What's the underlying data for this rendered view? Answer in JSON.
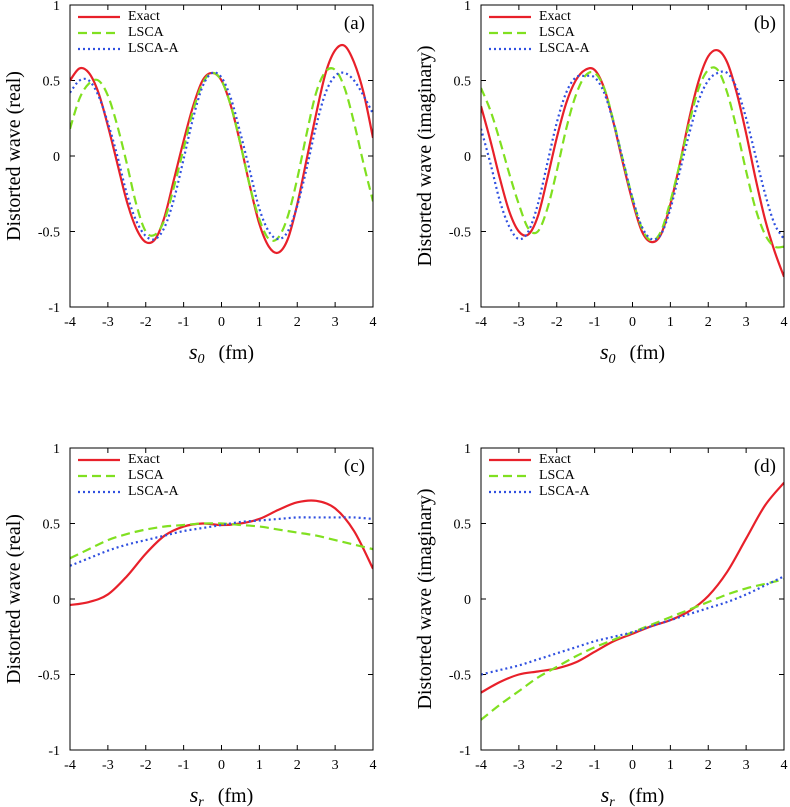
{
  "chart_data": [
    {
      "type": "line",
      "panel_label": "(a)",
      "ylabel": "Distorted wave (real)",
      "xlabel": {
        "symbol": "s",
        "subscript": "0",
        "unit": "(fm)"
      },
      "xlim": [
        -4,
        4
      ],
      "ylim": [
        -1,
        1
      ],
      "xticks": [
        -4,
        -3,
        -2,
        -1,
        0,
        1,
        2,
        3,
        4
      ],
      "yticks": [
        -1,
        -0.5,
        0,
        0.5,
        1
      ],
      "legend": "upper left",
      "x": [
        -4,
        -3.75,
        -3.5,
        -3.25,
        -3,
        -2.75,
        -2.5,
        -2.25,
        -2,
        -1.75,
        -1.5,
        -1.25,
        -1,
        -0.75,
        -0.5,
        -0.25,
        0,
        0.25,
        0.5,
        0.75,
        1,
        1.25,
        1.5,
        1.75,
        2,
        2.25,
        2.5,
        2.75,
        3,
        3.25,
        3.5,
        3.75,
        4
      ],
      "series": [
        {
          "name": "Exact",
          "color": "#e8202a",
          "linestyle": "solid",
          "values": [
            0.5,
            0.58,
            0.55,
            0.42,
            0.2,
            -0.05,
            -0.3,
            -0.48,
            -0.57,
            -0.55,
            -0.4,
            -0.15,
            0.1,
            0.33,
            0.5,
            0.55,
            0.5,
            0.33,
            0.08,
            -0.2,
            -0.45,
            -0.6,
            -0.64,
            -0.55,
            -0.32,
            -0.02,
            0.28,
            0.55,
            0.7,
            0.73,
            0.62,
            0.42,
            0.12
          ]
        },
        {
          "name": "LSCA",
          "color": "#80e020",
          "linestyle": "dashed",
          "values": [
            0.18,
            0.38,
            0.48,
            0.5,
            0.4,
            0.2,
            -0.05,
            -0.32,
            -0.5,
            -0.52,
            -0.42,
            -0.2,
            0.05,
            0.3,
            0.48,
            0.55,
            0.5,
            0.33,
            0.08,
            -0.2,
            -0.42,
            -0.55,
            -0.54,
            -0.4,
            -0.15,
            0.15,
            0.42,
            0.56,
            0.57,
            0.45,
            0.22,
            -0.05,
            -0.3
          ]
        },
        {
          "name": "LSCA-A",
          "color": "#3050e0",
          "linestyle": "dotted",
          "values": [
            0.42,
            0.5,
            0.5,
            0.4,
            0.22,
            0.0,
            -0.25,
            -0.43,
            -0.53,
            -0.55,
            -0.47,
            -0.28,
            -0.02,
            0.25,
            0.46,
            0.55,
            0.52,
            0.38,
            0.15,
            -0.1,
            -0.35,
            -0.5,
            -0.55,
            -0.5,
            -0.33,
            -0.08,
            0.2,
            0.42,
            0.53,
            0.55,
            0.5,
            0.4,
            0.28
          ]
        }
      ]
    },
    {
      "type": "line",
      "panel_label": "(b)",
      "ylabel": "Distorted wave (imaginary)",
      "xlabel": {
        "symbol": "s",
        "subscript": "0",
        "unit": "(fm)"
      },
      "xlim": [
        -4,
        4
      ],
      "ylim": [
        -1,
        1
      ],
      "xticks": [
        -4,
        -3,
        -2,
        -1,
        0,
        1,
        2,
        3,
        4
      ],
      "yticks": [
        -1,
        -0.5,
        0,
        0.5,
        1
      ],
      "legend": "upper left",
      "x": [
        -4,
        -3.75,
        -3.5,
        -3.25,
        -3,
        -2.75,
        -2.5,
        -2.25,
        -2,
        -1.75,
        -1.5,
        -1.25,
        -1,
        -0.75,
        -0.5,
        -0.25,
        0,
        0.25,
        0.5,
        0.75,
        1,
        1.25,
        1.5,
        1.75,
        2,
        2.25,
        2.5,
        2.75,
        3,
        3.25,
        3.5,
        3.75,
        4
      ],
      "series": [
        {
          "name": "Exact",
          "color": "#e8202a",
          "linestyle": "solid",
          "values": [
            0.33,
            0.1,
            -0.15,
            -0.37,
            -0.5,
            -0.52,
            -0.4,
            -0.15,
            0.12,
            0.35,
            0.5,
            0.57,
            0.57,
            0.45,
            0.22,
            -0.05,
            -0.3,
            -0.5,
            -0.57,
            -0.52,
            -0.32,
            -0.05,
            0.25,
            0.5,
            0.66,
            0.7,
            0.62,
            0.42,
            0.15,
            -0.15,
            -0.42,
            -0.63,
            -0.8
          ]
        },
        {
          "name": "LSCA",
          "color": "#80e020",
          "linestyle": "dashed",
          "values": [
            0.45,
            0.3,
            0.1,
            -0.12,
            -0.32,
            -0.48,
            -0.5,
            -0.35,
            -0.1,
            0.18,
            0.4,
            0.53,
            0.55,
            0.45,
            0.23,
            -0.03,
            -0.28,
            -0.48,
            -0.56,
            -0.5,
            -0.3,
            -0.05,
            0.22,
            0.45,
            0.57,
            0.57,
            0.42,
            0.18,
            -0.1,
            -0.35,
            -0.52,
            -0.6,
            -0.6
          ]
        },
        {
          "name": "LSCA-A",
          "color": "#3050e0",
          "linestyle": "dotted",
          "values": [
            0.18,
            -0.05,
            -0.3,
            -0.47,
            -0.55,
            -0.5,
            -0.32,
            -0.05,
            0.22,
            0.42,
            0.52,
            0.53,
            0.52,
            0.42,
            0.22,
            -0.03,
            -0.28,
            -0.47,
            -0.55,
            -0.52,
            -0.35,
            -0.1,
            0.15,
            0.37,
            0.5,
            0.55,
            0.55,
            0.45,
            0.25,
            0.0,
            -0.25,
            -0.45,
            -0.55
          ]
        }
      ]
    },
    {
      "type": "line",
      "panel_label": "(c)",
      "ylabel": "Distorted wave (real)",
      "xlabel": {
        "symbol": "s",
        "subscript": "r",
        "unit": "(fm)"
      },
      "xlim": [
        -4,
        4
      ],
      "ylim": [
        -1,
        1
      ],
      "xticks": [
        -4,
        -3,
        -2,
        -1,
        0,
        1,
        2,
        3,
        4
      ],
      "yticks": [
        -1,
        -0.5,
        0,
        0.5,
        1
      ],
      "legend": "upper left",
      "x": [
        -4,
        -3.5,
        -3,
        -2.5,
        -2,
        -1.5,
        -1,
        -0.5,
        0,
        0.5,
        1,
        1.5,
        2,
        2.5,
        3,
        3.5,
        4
      ],
      "series": [
        {
          "name": "Exact",
          "color": "#e8202a",
          "linestyle": "solid",
          "values": [
            -0.04,
            -0.02,
            0.03,
            0.15,
            0.3,
            0.42,
            0.48,
            0.5,
            0.49,
            0.5,
            0.53,
            0.59,
            0.64,
            0.65,
            0.6,
            0.45,
            0.2
          ]
        },
        {
          "name": "LSCA",
          "color": "#80e020",
          "linestyle": "dashed",
          "values": [
            0.27,
            0.33,
            0.39,
            0.43,
            0.46,
            0.48,
            0.49,
            0.5,
            0.5,
            0.49,
            0.48,
            0.46,
            0.44,
            0.42,
            0.39,
            0.36,
            0.33
          ]
        },
        {
          "name": "LSCA-A",
          "color": "#3050e0",
          "linestyle": "dotted",
          "values": [
            0.22,
            0.27,
            0.32,
            0.36,
            0.39,
            0.42,
            0.45,
            0.47,
            0.49,
            0.51,
            0.52,
            0.53,
            0.54,
            0.54,
            0.54,
            0.54,
            0.53
          ]
        }
      ]
    },
    {
      "type": "line",
      "panel_label": "(d)",
      "ylabel": "Distorted wave (imaginary)",
      "xlabel": {
        "symbol": "s",
        "subscript": "r",
        "unit": "(fm)"
      },
      "xlim": [
        -4,
        4
      ],
      "ylim": [
        -1,
        1
      ],
      "xticks": [
        -4,
        -3,
        -2,
        -1,
        0,
        1,
        2,
        3,
        4
      ],
      "yticks": [
        -1,
        -0.5,
        0,
        0.5,
        1
      ],
      "legend": "upper left",
      "x": [
        -4,
        -3.5,
        -3,
        -2.5,
        -2,
        -1.5,
        -1,
        -0.5,
        0,
        0.5,
        1,
        1.5,
        2,
        2.5,
        3,
        3.5,
        4
      ],
      "series": [
        {
          "name": "Exact",
          "color": "#e8202a",
          "linestyle": "solid",
          "values": [
            -0.62,
            -0.55,
            -0.5,
            -0.48,
            -0.46,
            -0.42,
            -0.35,
            -0.28,
            -0.23,
            -0.18,
            -0.14,
            -0.08,
            0.02,
            0.18,
            0.4,
            0.62,
            0.77
          ]
        },
        {
          "name": "LSCA",
          "color": "#80e020",
          "linestyle": "dashed",
          "values": [
            -0.8,
            -0.7,
            -0.61,
            -0.52,
            -0.45,
            -0.38,
            -0.32,
            -0.27,
            -0.22,
            -0.17,
            -0.12,
            -0.07,
            -0.02,
            0.03,
            0.07,
            0.1,
            0.13
          ]
        },
        {
          "name": "LSCA-A",
          "color": "#3050e0",
          "linestyle": "dotted",
          "values": [
            -0.5,
            -0.47,
            -0.44,
            -0.4,
            -0.36,
            -0.32,
            -0.28,
            -0.25,
            -0.22,
            -0.18,
            -0.14,
            -0.1,
            -0.06,
            -0.02,
            0.03,
            0.09,
            0.15
          ]
        }
      ]
    }
  ]
}
